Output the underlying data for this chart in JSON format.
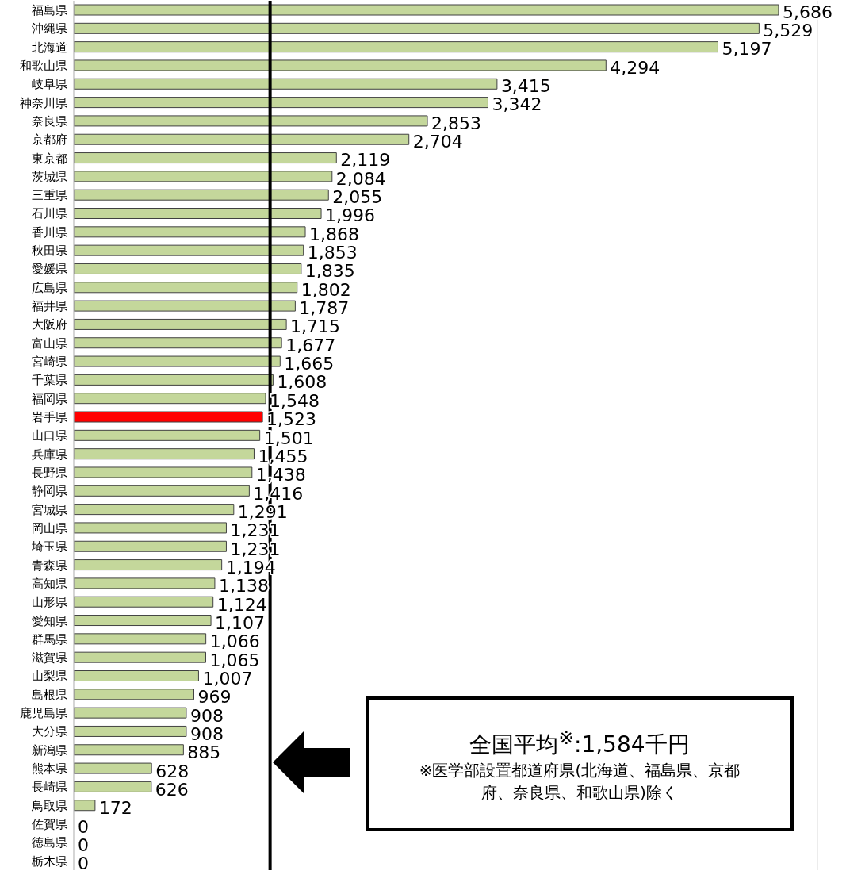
{
  "chart_data": {
    "type": "bar",
    "orientation": "horizontal",
    "categories": [
      "福島県",
      "沖縄県",
      "北海道",
      "和歌山県",
      "岐阜県",
      "神奈川県",
      "奈良県",
      "京都府",
      "東京都",
      "茨城県",
      "三重県",
      "石川県",
      "香川県",
      "秋田県",
      "愛媛県",
      "広島県",
      "福井県",
      "大阪府",
      "富山県",
      "宮崎県",
      "千葉県",
      "福岡県",
      "岩手県",
      "山口県",
      "兵庫県",
      "長野県",
      "静岡県",
      "宮城県",
      "岡山県",
      "埼玉県",
      "青森県",
      "高知県",
      "山形県",
      "愛知県",
      "群馬県",
      "滋賀県",
      "山梨県",
      "島根県",
      "鹿児島県",
      "大分県",
      "新潟県",
      "熊本県",
      "長崎県",
      "鳥取県",
      "佐賀県",
      "徳島県",
      "栃木県"
    ],
    "values": [
      5686,
      5529,
      5197,
      4294,
      3415,
      3342,
      2853,
      2704,
      2119,
      2084,
      2055,
      1996,
      1868,
      1853,
      1835,
      1802,
      1787,
      1715,
      1677,
      1665,
      1608,
      1548,
      1523,
      1501,
      1455,
      1438,
      1416,
      1291,
      1231,
      1231,
      1194,
      1138,
      1124,
      1107,
      1066,
      1065,
      1007,
      969,
      908,
      908,
      885,
      628,
      626,
      172,
      0,
      0,
      0
    ],
    "colors": [
      "#c4d79b",
      "#c4d79b",
      "#c4d79b",
      "#c4d79b",
      "#c4d79b",
      "#c4d79b",
      "#c4d79b",
      "#c4d79b",
      "#c4d79b",
      "#c4d79b",
      "#c4d79b",
      "#c4d79b",
      "#c4d79b",
      "#c4d79b",
      "#c4d79b",
      "#c4d79b",
      "#c4d79b",
      "#c4d79b",
      "#c4d79b",
      "#c4d79b",
      "#c4d79b",
      "#c4d79b",
      "#ff0000",
      "#c4d79b",
      "#c4d79b",
      "#c4d79b",
      "#c4d79b",
      "#c4d79b",
      "#c4d79b",
      "#c4d79b",
      "#c4d79b",
      "#c4d79b",
      "#c4d79b",
      "#c4d79b",
      "#c4d79b",
      "#c4d79b",
      "#c4d79b",
      "#c4d79b",
      "#c4d79b",
      "#c4d79b",
      "#c4d79b",
      "#c4d79b",
      "#c4d79b",
      "#c4d79b",
      "#c4d79b",
      "#c4d79b",
      "#c4d79b"
    ],
    "xlim": [
      0,
      6000
    ],
    "value_labels": [
      "5,686",
      "5,529",
      "5,197",
      "4,294",
      "3,415",
      "3,342",
      "2,853",
      "2,704",
      "2,119",
      "2,084",
      "2,055",
      "1,996",
      "1,868",
      "1,853",
      "1,835",
      "1,802",
      "1,787",
      "1,715",
      "1,677",
      "1,665",
      "1,608",
      "1,548",
      "1,523",
      "1,501",
      "1,455",
      "1,438",
      "1,416",
      "1,291",
      "1,231",
      "1,231",
      "1,194",
      "1,138",
      "1,124",
      "1,107",
      "1,066",
      "1,065",
      "1,007",
      "969",
      "908",
      "908",
      "885",
      "628",
      "626",
      "172",
      "0",
      "0",
      "0"
    ],
    "tick_labels": "y",
    "grid": "x",
    "ref_lines": [
      {
        "axis": "x",
        "value": 1584,
        "label": "全国平均$^{※}$:1,584千円",
        "color": "#000000"
      }
    ],
    "annotations": [
      "※医学部設置都道府県(北海道、福島県、京都府、奈良県、和歌山県)除く"
    ]
  }
}
